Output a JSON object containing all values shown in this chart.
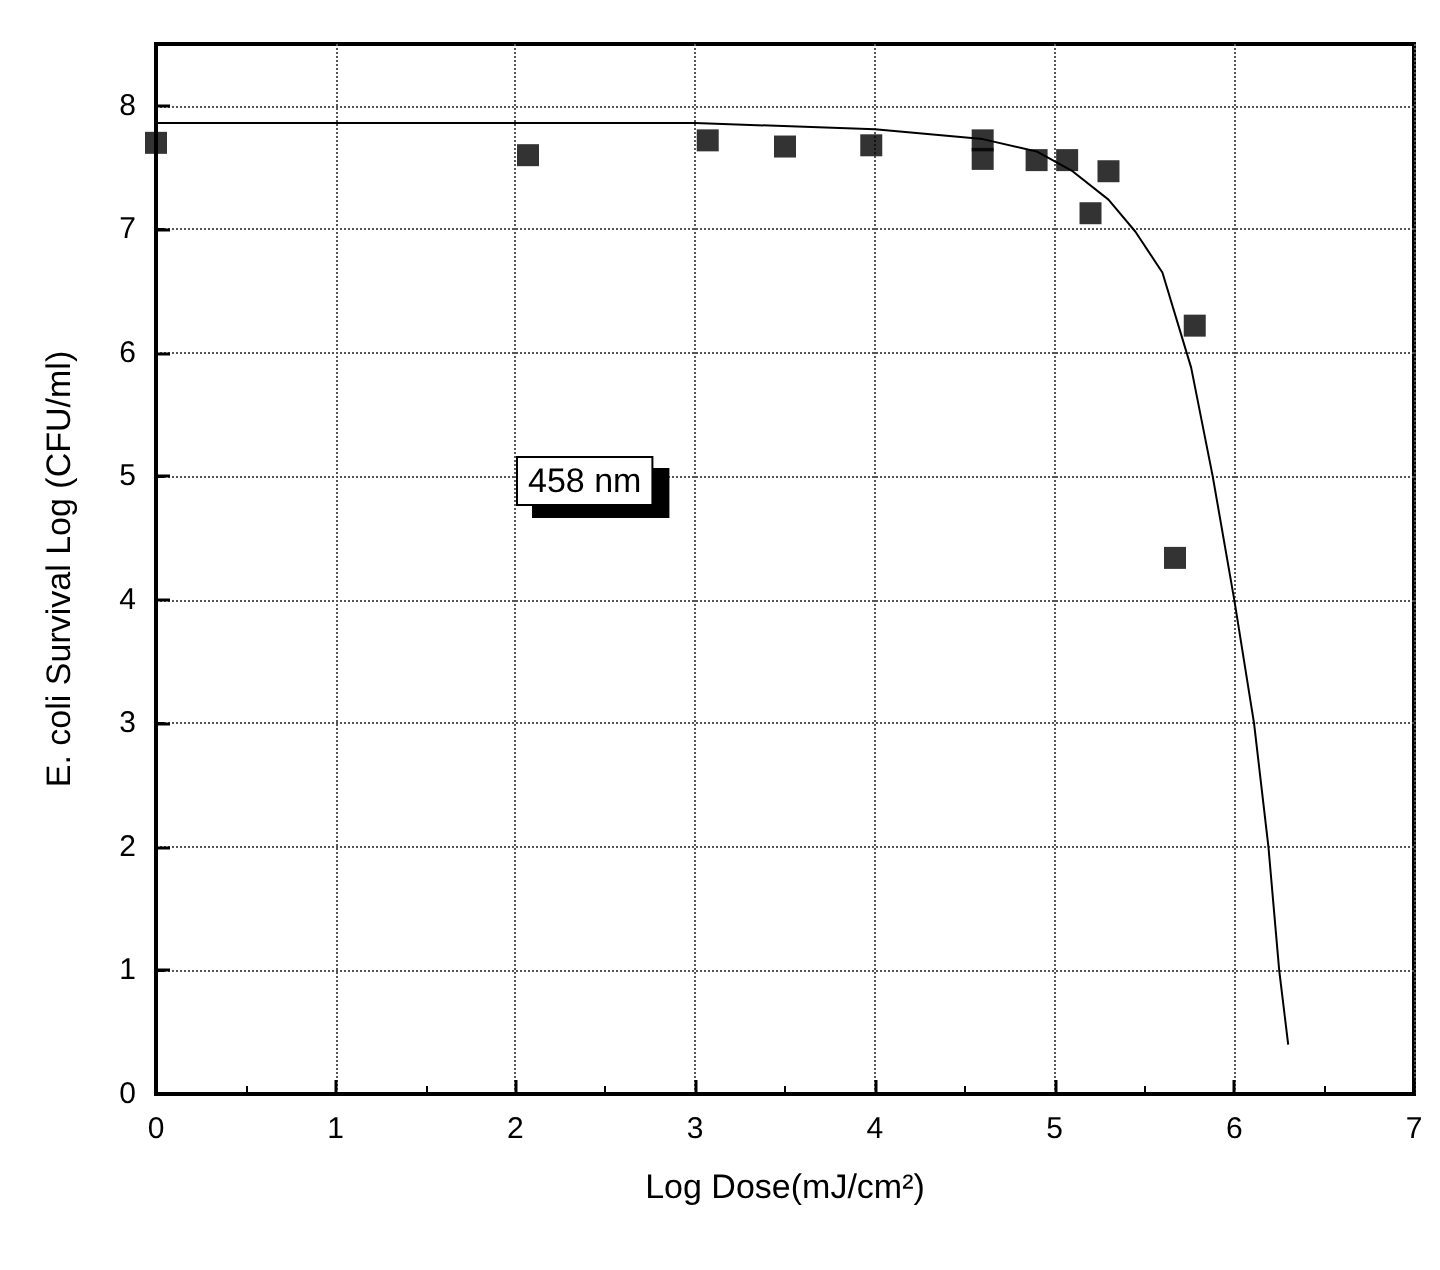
{
  "chart_data": {
    "type": "scatter",
    "xlabel": "Log Dose(mJ/cm²)",
    "ylabel": "E. coli Survival Log (CFU/ml)",
    "annotations": [
      "458 nm"
    ],
    "series": [
      {
        "color": "#000000",
        "marker": "square",
        "x": [
          0,
          2.07,
          3.07,
          3.5,
          3.98,
          4.6,
          4.6,
          4.9,
          5.07,
          5.2,
          5.3,
          5.67,
          5.78
        ],
        "values": [
          7.7,
          7.6,
          7.72,
          7.67,
          7.68,
          7.72,
          7.57,
          7.56,
          7.56,
          7.13,
          7.47,
          4.34,
          6.22
        ]
      },
      {
        "type": "line",
        "color": "#000000",
        "marker": "none",
        "line_style": "solid",
        "x": [
          0,
          3,
          4,
          4.6,
          4.9,
          5.1,
          5.3,
          5.45,
          5.6,
          5.76,
          5.88,
          6.0,
          6.11,
          6.19,
          6.25,
          6.3
        ],
        "values": [
          7.86,
          7.86,
          7.81,
          7.73,
          7.63,
          7.47,
          7.24,
          6.98,
          6.65,
          5.88,
          5.0,
          4.0,
          3.0,
          2.0,
          1.0,
          0.4
        ]
      }
    ],
    "xlim": [
      0,
      7
    ],
    "xticks": [
      0,
      1,
      2,
      3,
      4,
      5,
      6,
      7
    ],
    "ylim": [
      0,
      8.5
    ],
    "yticks": [
      0,
      1,
      2,
      3,
      4,
      5,
      6,
      7,
      8
    ],
    "grid": true
  }
}
